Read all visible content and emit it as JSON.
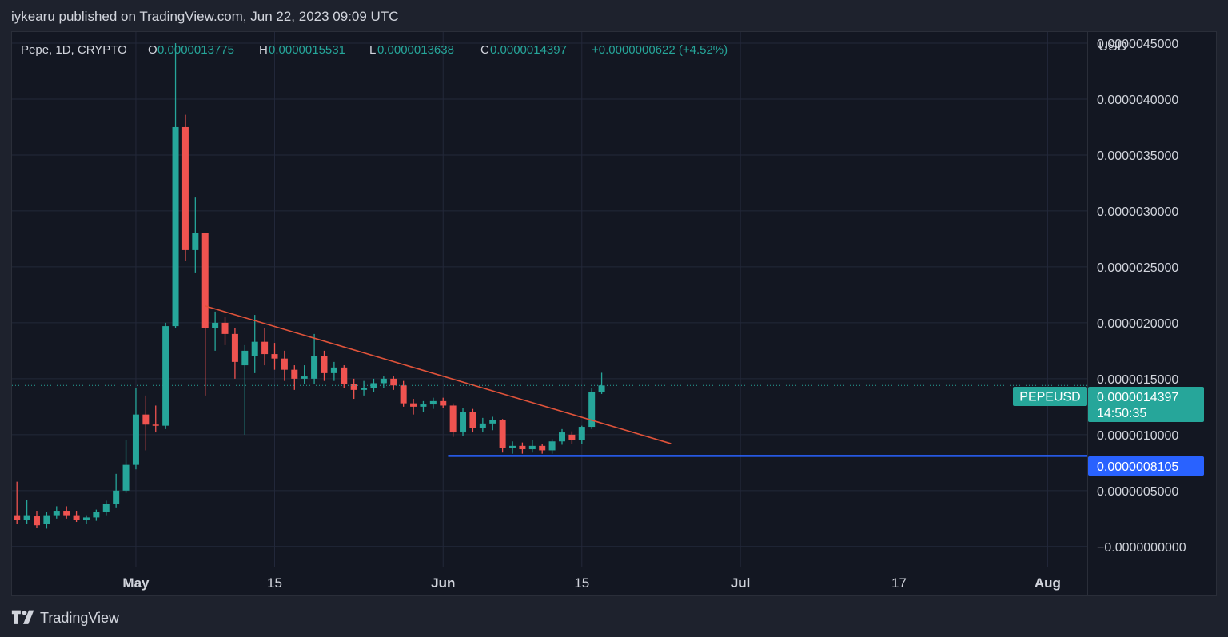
{
  "header": {
    "published_line": "iykearu published on TradingView.com, Jun 22, 2023 09:09 UTC"
  },
  "legend": {
    "symbol_line": "Pepe, 1D, CRYPTO",
    "o_label": "O",
    "o_value": "0.0000013775",
    "h_label": "H",
    "h_value": "0.0000015531",
    "l_label": "L",
    "l_value": "0.0000013638",
    "c_label": "C",
    "c_value": "0.0000014397",
    "change": "+0.0000000622 (+4.52%)"
  },
  "price_axis": {
    "currency": "USD",
    "ticks": [
      {
        "value": 4.5e-06,
        "label": "0.0000045000"
      },
      {
        "value": 4e-06,
        "label": "0.0000040000"
      },
      {
        "value": 3.5e-06,
        "label": "0.0000035000"
      },
      {
        "value": 3e-06,
        "label": "0.0000030000"
      },
      {
        "value": 2.5e-06,
        "label": "0.0000025000"
      },
      {
        "value": 2e-06,
        "label": "0.0000020000"
      },
      {
        "value": 1.5e-06,
        "label": "0.0000015000"
      },
      {
        "value": 1e-06,
        "label": "0.0000010000"
      },
      {
        "value": 5e-07,
        "label": "0.0000005000"
      },
      {
        "value": 0,
        "label": "−0.0000000000"
      }
    ]
  },
  "time_axis": {
    "ticks": [
      {
        "day": 0,
        "label": "May"
      },
      {
        "day": 14,
        "label": "15"
      },
      {
        "day": 31,
        "label": "Jun"
      },
      {
        "day": 45,
        "label": "15"
      },
      {
        "day": 61,
        "label": "Jul"
      },
      {
        "day": 77,
        "label": "17"
      },
      {
        "day": 92,
        "label": "Aug"
      }
    ]
  },
  "price_tags": {
    "symbol_tag": "PEPEUSD",
    "last_price": "0.0000014397",
    "countdown": "14:50:35",
    "support_price": "0.0000008105"
  },
  "colors": {
    "up": "#26a69a",
    "down": "#ef5350",
    "trendline": "#e0533a",
    "support_line": "#2962ff",
    "background": "#131722",
    "grid": "#23283a",
    "axis_text": "#d1d4dc"
  },
  "footer": {
    "brand": "TradingView"
  },
  "chart_data": {
    "type": "candlestick",
    "title": "Pepe, 1D, CRYPTO",
    "symbol": "PEPEUSD",
    "x_unit": "days from 1 May 2023",
    "x_range": [
      -12.5,
      96
    ],
    "y_range": [
      -1.8e-07,
      4.6e-06
    ],
    "grid": true,
    "candles": [
      {
        "day": -12,
        "o": 2.8e-07,
        "h": 5.8e-07,
        "l": 2e-07,
        "c": 2.4e-07
      },
      {
        "day": -11,
        "o": 2.4e-07,
        "h": 4.2e-07,
        "l": 2e-07,
        "c": 2.8e-07
      },
      {
        "day": -10,
        "o": 2.7e-07,
        "h": 3.2e-07,
        "l": 1.7e-07,
        "c": 1.9e-07
      },
      {
        "day": -9,
        "o": 2e-07,
        "h": 3.1e-07,
        "l": 1.6e-07,
        "c": 2.8e-07
      },
      {
        "day": -8,
        "o": 2.8e-07,
        "h": 3.6e-07,
        "l": 2.5e-07,
        "c": 3.2e-07
      },
      {
        "day": -7,
        "o": 3.2e-07,
        "h": 3.6e-07,
        "l": 2.5e-07,
        "c": 2.8e-07
      },
      {
        "day": -6,
        "o": 2.8e-07,
        "h": 3.2e-07,
        "l": 2.2e-07,
        "c": 2.4e-07
      },
      {
        "day": -5,
        "o": 2.4e-07,
        "h": 2.8e-07,
        "l": 2e-07,
        "c": 2.6e-07
      },
      {
        "day": -4,
        "o": 2.6e-07,
        "h": 3.3e-07,
        "l": 2.3e-07,
        "c": 3.1e-07
      },
      {
        "day": -3,
        "o": 3.1e-07,
        "h": 4.1e-07,
        "l": 2.8e-07,
        "c": 3.8e-07
      },
      {
        "day": -2,
        "o": 3.8e-07,
        "h": 6.5e-07,
        "l": 3.5e-07,
        "c": 5e-07
      },
      {
        "day": -1,
        "o": 5e-07,
        "h": 9.5e-07,
        "l": 4.8e-07,
        "c": 7.3e-07
      },
      {
        "day": 0,
        "o": 7.3e-07,
        "h": 1.42e-06,
        "l": 6.9e-07,
        "c": 1.18e-06
      },
      {
        "day": 1,
        "o": 1.18e-06,
        "h": 1.35e-06,
        "l": 8.6e-07,
        "c": 1.09e-06
      },
      {
        "day": 2,
        "o": 1.09e-06,
        "h": 1.26e-06,
        "l": 1.02e-06,
        "c": 1.08e-06
      },
      {
        "day": 3,
        "o": 1.08e-06,
        "h": 2e-06,
        "l": 1.05e-06,
        "c": 1.97e-06
      },
      {
        "day": 4,
        "o": 1.97e-06,
        "h": 4.5e-06,
        "l": 1.95e-06,
        "c": 3.75e-06
      },
      {
        "day": 5,
        "o": 3.75e-06,
        "h": 3.86e-06,
        "l": 2.55e-06,
        "c": 2.65e-06
      },
      {
        "day": 6,
        "o": 2.65e-06,
        "h": 3.12e-06,
        "l": 2.45e-06,
        "c": 2.8e-06
      },
      {
        "day": 7,
        "o": 2.8e-06,
        "h": 2.8e-06,
        "l": 1.35e-06,
        "c": 1.95e-06
      },
      {
        "day": 8,
        "o": 1.95e-06,
        "h": 2.1e-06,
        "l": 1.75e-06,
        "c": 2e-06
      },
      {
        "day": 9,
        "o": 2e-06,
        "h": 2.05e-06,
        "l": 1.8e-06,
        "c": 1.9e-06
      },
      {
        "day": 10,
        "o": 1.9e-06,
        "h": 1.95e-06,
        "l": 1.5e-06,
        "c": 1.65e-06
      },
      {
        "day": 11,
        "o": 1.62e-06,
        "h": 1.8e-06,
        "l": 1e-06,
        "c": 1.75e-06
      },
      {
        "day": 12,
        "o": 1.7e-06,
        "h": 2.07e-06,
        "l": 1.55e-06,
        "c": 1.83e-06
      },
      {
        "day": 13,
        "o": 1.83e-06,
        "h": 1.95e-06,
        "l": 1.62e-06,
        "c": 1.72e-06
      },
      {
        "day": 14,
        "o": 1.72e-06,
        "h": 1.82e-06,
        "l": 1.58e-06,
        "c": 1.68e-06
      },
      {
        "day": 15,
        "o": 1.68e-06,
        "h": 1.75e-06,
        "l": 1.48e-06,
        "c": 1.58e-06
      },
      {
        "day": 16,
        "o": 1.58e-06,
        "h": 1.62e-06,
        "l": 1.4e-06,
        "c": 1.5e-06
      },
      {
        "day": 17,
        "o": 1.5e-06,
        "h": 1.62e-06,
        "l": 1.45e-06,
        "c": 1.52e-06
      },
      {
        "day": 18,
        "o": 1.5e-06,
        "h": 1.9e-06,
        "l": 1.45e-06,
        "c": 1.7e-06
      },
      {
        "day": 19,
        "o": 1.7e-06,
        "h": 1.75e-06,
        "l": 1.48e-06,
        "c": 1.55e-06
      },
      {
        "day": 20,
        "o": 1.55e-06,
        "h": 1.65e-06,
        "l": 1.48e-06,
        "c": 1.6e-06
      },
      {
        "day": 21,
        "o": 1.6e-06,
        "h": 1.62e-06,
        "l": 1.42e-06,
        "c": 1.45e-06
      },
      {
        "day": 22,
        "o": 1.45e-06,
        "h": 1.5e-06,
        "l": 1.32e-06,
        "c": 1.4e-06
      },
      {
        "day": 23,
        "o": 1.4e-06,
        "h": 1.48e-06,
        "l": 1.35e-06,
        "c": 1.42e-06
      },
      {
        "day": 24,
        "o": 1.42e-06,
        "h": 1.5e-06,
        "l": 1.38e-06,
        "c": 1.46e-06
      },
      {
        "day": 25,
        "o": 1.46e-06,
        "h": 1.52e-06,
        "l": 1.42e-06,
        "c": 1.5e-06
      },
      {
        "day": 26,
        "o": 1.5e-06,
        "h": 1.52e-06,
        "l": 1.4e-06,
        "c": 1.44e-06
      },
      {
        "day": 27,
        "o": 1.44e-06,
        "h": 1.48e-06,
        "l": 1.25e-06,
        "c": 1.28e-06
      },
      {
        "day": 28,
        "o": 1.28e-06,
        "h": 1.32e-06,
        "l": 1.18e-06,
        "c": 1.25e-06
      },
      {
        "day": 29,
        "o": 1.25e-06,
        "h": 1.3e-06,
        "l": 1.2e-06,
        "c": 1.27e-06
      },
      {
        "day": 30,
        "o": 1.27e-06,
        "h": 1.33e-06,
        "l": 1.23e-06,
        "c": 1.3e-06
      },
      {
        "day": 31,
        "o": 1.3e-06,
        "h": 1.33e-06,
        "l": 1.24e-06,
        "c": 1.26e-06
      },
      {
        "day": 32,
        "o": 1.26e-06,
        "h": 1.28e-06,
        "l": 9.8e-07,
        "c": 1.02e-06
      },
      {
        "day": 33,
        "o": 1.02e-06,
        "h": 1.24e-06,
        "l": 9.9e-07,
        "c": 1.2e-06
      },
      {
        "day": 34,
        "o": 1.2e-06,
        "h": 1.23e-06,
        "l": 1.02e-06,
        "c": 1.06e-06
      },
      {
        "day": 35,
        "o": 1.06e-06,
        "h": 1.15e-06,
        "l": 1.02e-06,
        "c": 1.1e-06
      },
      {
        "day": 36,
        "o": 1.1e-06,
        "h": 1.16e-06,
        "l": 1.04e-06,
        "c": 1.13e-06
      },
      {
        "day": 37,
        "o": 1.13e-06,
        "h": 1.14e-06,
        "l": 8.4e-07,
        "c": 8.8e-07
      },
      {
        "day": 38,
        "o": 8.8e-07,
        "h": 9.4e-07,
        "l": 8.3e-07,
        "c": 9e-07
      },
      {
        "day": 39,
        "o": 9e-07,
        "h": 9.3e-07,
        "l": 8.3e-07,
        "c": 8.7e-07
      },
      {
        "day": 40,
        "o": 8.7e-07,
        "h": 9.5e-07,
        "l": 8.4e-07,
        "c": 9e-07
      },
      {
        "day": 41,
        "o": 9e-07,
        "h": 9.2e-07,
        "l": 8.3e-07,
        "c": 8.6e-07
      },
      {
        "day": 42,
        "o": 8.6e-07,
        "h": 9.6e-07,
        "l": 8.3e-07,
        "c": 9.4e-07
      },
      {
        "day": 43,
        "o": 9.4e-07,
        "h": 1.05e-06,
        "l": 9.1e-07,
        "c": 1.02e-06
      },
      {
        "day": 44,
        "o": 1e-06,
        "h": 1.03e-06,
        "l": 9.2e-07,
        "c": 9.5e-07
      },
      {
        "day": 45,
        "o": 9.5e-07,
        "h": 1.08e-06,
        "l": 9.2e-07,
        "c": 1.07e-06
      },
      {
        "day": 46,
        "o": 1.07e-06,
        "h": 1.42e-06,
        "l": 1.05e-06,
        "c": 1.38e-06
      },
      {
        "day": 47,
        "o": 1.3775e-06,
        "h": 1.5531e-06,
        "l": 1.3638e-06,
        "c": 1.4397e-06
      }
    ],
    "trendline": {
      "start": {
        "day": 7,
        "price": 2.15e-06
      },
      "end": {
        "day": 54,
        "price": 9.2e-07
      }
    },
    "support_line": {
      "start_day": 31.5,
      "price": 8.105e-07
    },
    "last_price": 1.4397e-06
  }
}
